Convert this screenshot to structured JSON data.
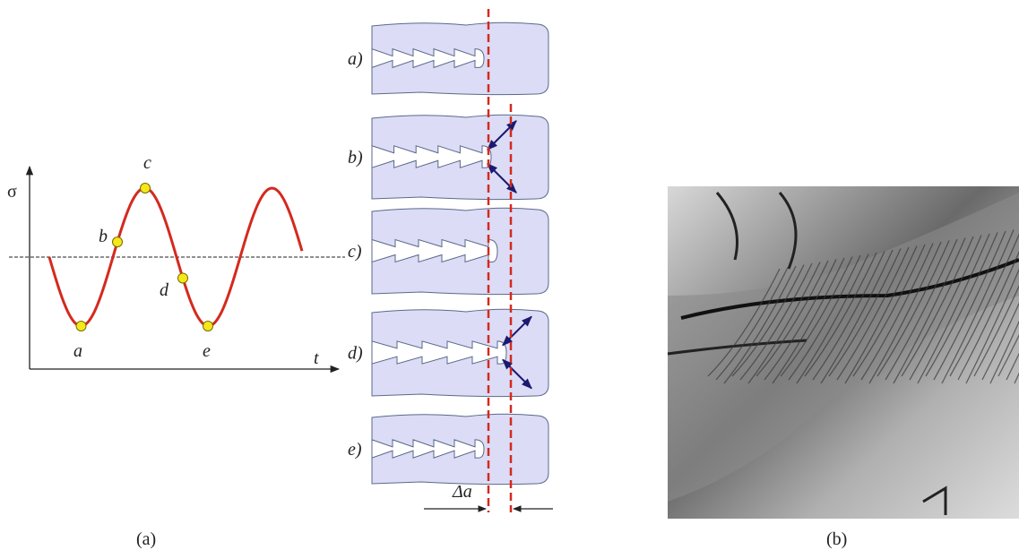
{
  "graph": {
    "y_axis_label": "σ",
    "x_axis_label": "t",
    "points": [
      "a",
      "b",
      "c",
      "d",
      "e"
    ]
  },
  "panels": [
    "a)",
    "b)",
    "c)",
    "d)",
    "e)"
  ],
  "delta_label": "Δa",
  "captions": [
    "(a)",
    "(b)"
  ]
}
